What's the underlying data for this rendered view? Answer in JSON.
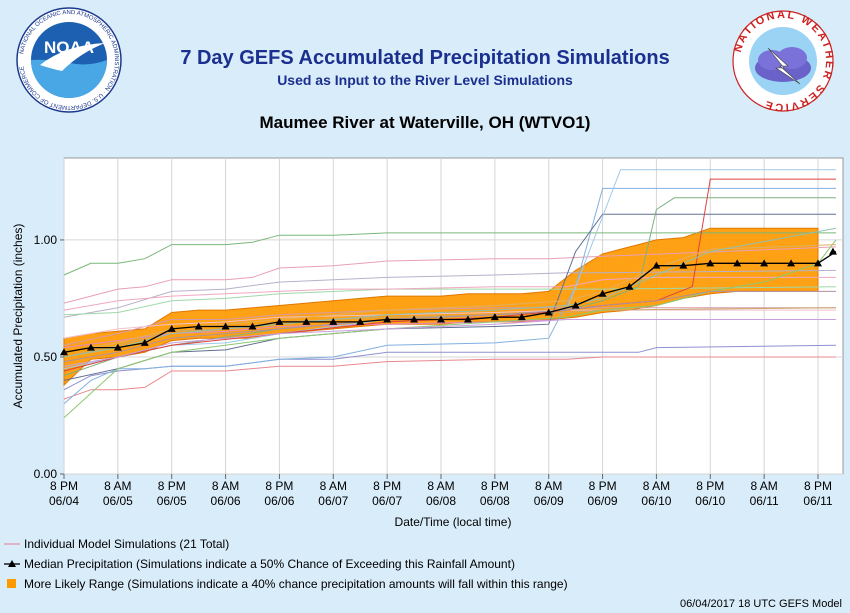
{
  "header": {
    "title": "7 Day GEFS Accumulated Precipitation Simulations",
    "subtitle": "Used as Input to the River Level Simulations",
    "location": "Maumee River at Waterville, OH (WTVO1)",
    "noaa_logo_text": "NOAA",
    "noaa_ring_text": "NATIONAL OCEANIC AND ATMOSPHERIC ADMINISTRATION · U.S. DEPARTMENT OF COMMERCE",
    "nws_ring_text": "NATIONAL WEATHER SERVICE"
  },
  "footer": {
    "model_run": "06/04/2017 18 UTC GEFS Model"
  },
  "chart_data": {
    "type": "line",
    "xlabel": "Date/Time (local time)",
    "ylabel": "Accumulated Precipitation (inches)",
    "ylim": [
      0,
      1.35
    ],
    "yticks": [
      "0.00",
      "0.50",
      "1.00"
    ],
    "ytick_values": [
      0,
      0.5,
      1.0
    ],
    "xlim": [
      0,
      84
    ],
    "xticks": [
      {
        "t": 0,
        "l1": "8 PM",
        "l2": "06/04"
      },
      {
        "t": 6,
        "l1": "8 AM",
        "l2": "06/05"
      },
      {
        "t": 12,
        "l1": "8 PM",
        "l2": "06/05"
      },
      {
        "t": 18,
        "l1": "8 AM",
        "l2": "06/06"
      },
      {
        "t": 24,
        "l1": "8 PM",
        "l2": "06/06"
      },
      {
        "t": 30,
        "l1": "8 AM",
        "l2": "06/07"
      },
      {
        "t": 36,
        "l1": "8 PM",
        "l2": "06/07"
      },
      {
        "t": 42,
        "l1": "8 AM",
        "l2": "06/08"
      },
      {
        "t": 48,
        "l1": "8 PM",
        "l2": "06/08"
      },
      {
        "t": 54,
        "l1": "8 AM",
        "l2": "06/09"
      },
      {
        "t": 60,
        "l1": "8 PM",
        "l2": "06/09"
      },
      {
        "t": 66,
        "l1": "8 AM",
        "l2": "06/10"
      },
      {
        "t": 72,
        "l1": "8 PM",
        "l2": "06/10"
      },
      {
        "t": 78,
        "l1": "8 AM",
        "l2": "06/11"
      },
      {
        "t": 84,
        "l1": "8 PM",
        "l2": "06/11"
      }
    ],
    "x_unit": "hours/2 since 06/04 8 PM (one unit = 2 hours)",
    "likely_range": {
      "t": [
        0,
        3,
        6,
        9,
        12,
        15,
        18,
        21,
        24,
        27,
        30,
        33,
        36,
        39,
        42,
        45,
        48,
        51,
        54,
        57,
        60,
        63,
        66,
        69,
        72,
        75,
        78,
        81,
        84
      ],
      "low": [
        0.38,
        0.49,
        0.5,
        0.52,
        0.57,
        0.58,
        0.58,
        0.58,
        0.6,
        0.61,
        0.62,
        0.63,
        0.64,
        0.64,
        0.64,
        0.65,
        0.65,
        0.65,
        0.66,
        0.67,
        0.69,
        0.7,
        0.72,
        0.75,
        0.77,
        0.78,
        0.78,
        0.78,
        0.78
      ],
      "high": [
        0.58,
        0.6,
        0.61,
        0.62,
        0.69,
        0.7,
        0.7,
        0.71,
        0.72,
        0.73,
        0.74,
        0.75,
        0.76,
        0.76,
        0.76,
        0.77,
        0.77,
        0.77,
        0.78,
        0.87,
        0.94,
        0.97,
        1.0,
        1.01,
        1.05,
        1.05,
        1.05,
        1.05,
        1.05
      ]
    },
    "median": {
      "name": "Median Precipitation",
      "t": [
        0,
        3,
        6,
        9,
        12,
        15,
        18,
        21,
        24,
        27,
        30,
        33,
        36,
        39,
        42,
        45,
        48,
        51,
        54,
        57,
        60,
        63,
        66,
        69,
        72,
        75,
        78,
        81,
        84
      ],
      "values": [
        0.52,
        0.54,
        0.54,
        0.56,
        0.62,
        0.63,
        0.63,
        0.63,
        0.65,
        0.65,
        0.65,
        0.65,
        0.66,
        0.66,
        0.66,
        0.66,
        0.67,
        0.67,
        0.69,
        0.72,
        0.77,
        0.8,
        0.89,
        0.89,
        0.9,
        0.9,
        0.9,
        0.9,
        0.9
      ]
    },
    "median_tail": {
      "t": [
        84,
        86
      ],
      "values": [
        0.9,
        0.95
      ]
    },
    "members": [
      {
        "color": "#79b779",
        "t": [
          0,
          3,
          6,
          9,
          12,
          18,
          21,
          24,
          30,
          36,
          48,
          56,
          60,
          86
        ],
        "values": [
          0.85,
          0.9,
          0.9,
          0.92,
          0.98,
          0.98,
          0.99,
          1.02,
          1.02,
          1.03,
          1.03,
          1.03,
          1.03,
          1.03
        ]
      },
      {
        "color": "#e8a0b4",
        "t": [
          0,
          6,
          9,
          12,
          18,
          21,
          24,
          30,
          36,
          48,
          54,
          60,
          86
        ],
        "values": [
          0.73,
          0.79,
          0.8,
          0.83,
          0.83,
          0.84,
          0.88,
          0.89,
          0.91,
          0.92,
          0.92,
          0.93,
          0.97
        ]
      },
      {
        "color": "#b8b0c8",
        "t": [
          0,
          6,
          12,
          18,
          24,
          36,
          48,
          56,
          60,
          86
        ],
        "values": [
          0.67,
          0.71,
          0.78,
          0.79,
          0.82,
          0.84,
          0.85,
          0.86,
          0.86,
          0.87
        ]
      },
      {
        "color": "#9fd9a8",
        "t": [
          0,
          6,
          12,
          18,
          24,
          36,
          48,
          56,
          60,
          86
        ],
        "values": [
          0.68,
          0.69,
          0.74,
          0.75,
          0.77,
          0.79,
          0.79,
          0.79,
          0.79,
          0.8
        ]
      },
      {
        "color": "#f0a8c0",
        "t": [
          0,
          6,
          12,
          18,
          24,
          30,
          36,
          48,
          56,
          60,
          66,
          86
        ],
        "values": [
          0.7,
          0.74,
          0.76,
          0.77,
          0.78,
          0.79,
          0.79,
          0.8,
          0.8,
          0.83,
          0.84,
          0.84
        ]
      },
      {
        "color": "#d89aa8",
        "t": [
          0,
          6,
          12,
          18,
          24,
          30,
          36,
          48,
          56,
          60,
          86
        ],
        "values": [
          0.55,
          0.6,
          0.66,
          0.66,
          0.68,
          0.69,
          0.7,
          0.71,
          0.71,
          0.71,
          0.71
        ]
      },
      {
        "color": "#f3c0cc",
        "t": [
          0,
          6,
          12,
          18,
          24,
          36,
          48,
          56,
          60,
          86
        ],
        "values": [
          0.58,
          0.62,
          0.64,
          0.65,
          0.67,
          0.68,
          0.69,
          0.7,
          0.7,
          0.7
        ]
      },
      {
        "color": "#e488c8",
        "t": [
          0,
          6,
          12,
          18,
          24,
          36,
          48,
          56,
          60,
          86
        ],
        "values": [
          0.54,
          0.57,
          0.6,
          0.61,
          0.63,
          0.64,
          0.65,
          0.66,
          0.66,
          0.66
        ]
      },
      {
        "color": "#c9a86a",
        "t": [
          0,
          6,
          12,
          18,
          24,
          36,
          48,
          56,
          60,
          86
        ],
        "values": [
          0.5,
          0.55,
          0.61,
          0.62,
          0.65,
          0.67,
          0.68,
          0.69,
          0.7,
          0.71
        ]
      },
      {
        "color": "#e8888f",
        "t": [
          0,
          3,
          6,
          9,
          12,
          18,
          24,
          30,
          36,
          48,
          56,
          60,
          86
        ],
        "values": [
          0.32,
          0.36,
          0.36,
          0.37,
          0.44,
          0.44,
          0.46,
          0.46,
          0.48,
          0.49,
          0.49,
          0.5,
          0.5
        ]
      },
      {
        "color": "#9090d0",
        "t": [
          0,
          3,
          6,
          9,
          12,
          18,
          24,
          30,
          36,
          48,
          56,
          60,
          64,
          66,
          86
        ],
        "values": [
          0.36,
          0.42,
          0.44,
          0.45,
          0.46,
          0.46,
          0.49,
          0.49,
          0.52,
          0.52,
          0.52,
          0.52,
          0.52,
          0.54,
          0.55
        ]
      },
      {
        "color": "#80b0e0",
        "t": [
          0,
          3,
          6,
          9,
          12,
          18,
          24,
          30,
          36,
          48,
          54,
          57,
          60,
          66,
          86
        ],
        "values": [
          0.3,
          0.4,
          0.45,
          0.45,
          0.46,
          0.46,
          0.49,
          0.5,
          0.55,
          0.56,
          0.58,
          0.8,
          1.22,
          1.22,
          1.22
        ]
      },
      {
        "color": "#607090",
        "t": [
          0,
          6,
          12,
          18,
          24,
          36,
          48,
          54,
          57,
          60,
          86
        ],
        "values": [
          0.4,
          0.45,
          0.52,
          0.53,
          0.58,
          0.62,
          0.63,
          0.64,
          0.95,
          1.11,
          1.11
        ]
      },
      {
        "color": "#a0c8e8",
        "t": [
          0,
          6,
          12,
          18,
          24,
          36,
          48,
          56,
          60,
          62,
          86
        ],
        "values": [
          0.45,
          0.5,
          0.55,
          0.56,
          0.6,
          0.66,
          0.68,
          0.7,
          1.1,
          1.3,
          1.3
        ]
      },
      {
        "color": "#7fb07f",
        "t": [
          0,
          6,
          12,
          24,
          36,
          48,
          56,
          60,
          64,
          66,
          68,
          86
        ],
        "values": [
          0.42,
          0.5,
          0.55,
          0.62,
          0.66,
          0.68,
          0.7,
          0.74,
          0.8,
          1.13,
          1.18,
          1.18
        ]
      },
      {
        "color": "#e04040",
        "t": [
          0,
          6,
          12,
          24,
          36,
          48,
          56,
          60,
          66,
          70,
          72,
          86
        ],
        "values": [
          0.44,
          0.5,
          0.55,
          0.6,
          0.65,
          0.67,
          0.7,
          0.72,
          0.74,
          0.8,
          1.26,
          1.26
        ]
      },
      {
        "color": "#8cc870",
        "t": [
          0,
          6,
          12,
          24,
          36,
          48,
          56,
          60,
          66,
          72,
          78,
          84,
          86
        ],
        "values": [
          0.24,
          0.45,
          0.52,
          0.58,
          0.62,
          0.65,
          0.67,
          0.7,
          0.72,
          0.78,
          0.82,
          0.9,
          1.0
        ]
      },
      {
        "color": "#b090a0",
        "t": [
          0,
          6,
          12,
          24,
          36,
          48,
          56,
          60,
          66,
          72,
          86
        ],
        "values": [
          0.48,
          0.52,
          0.58,
          0.62,
          0.66,
          0.68,
          0.7,
          0.72,
          0.74,
          0.78,
          0.78
        ]
      },
      {
        "color": "#c8a0e0",
        "t": [
          0,
          6,
          12,
          24,
          36,
          48,
          56,
          60,
          86
        ],
        "values": [
          0.46,
          0.5,
          0.56,
          0.6,
          0.62,
          0.64,
          0.66,
          0.66,
          0.66
        ]
      },
      {
        "color": "#e0b060",
        "t": [
          0,
          6,
          12,
          24,
          36,
          48,
          56,
          60,
          66,
          72,
          86
        ],
        "values": [
          0.52,
          0.56,
          0.62,
          0.66,
          0.7,
          0.72,
          0.74,
          0.78,
          0.88,
          0.96,
          0.98
        ]
      },
      {
        "color": "#90c0b0",
        "t": [
          0,
          6,
          12,
          24,
          36,
          48,
          56,
          60,
          66,
          72,
          86
        ],
        "values": [
          0.5,
          0.54,
          0.6,
          0.64,
          0.68,
          0.7,
          0.72,
          0.75,
          0.85,
          0.95,
          1.05
        ]
      }
    ],
    "legend": [
      {
        "key": "members",
        "label": "Individual Model Simulations (21 Total)",
        "color": "#e8a0b4"
      },
      {
        "key": "median",
        "label": "Median Precipitation (Simulations indicate a 50% Chance of Exceeding this Rainfall Amount)",
        "color": "#000000"
      },
      {
        "key": "range",
        "label": "More Likely Range (Simulations indicate a 40% chance precipitation amounts will fall within this range)",
        "color": "#ff9900"
      }
    ],
    "colors": {
      "range_fill": "#ff9900",
      "range_edge": "#e07800",
      "median_line": "#000000",
      "grid": "#d6d6d6",
      "plot_bg": "#ffffff",
      "title": "#1b2f8f"
    }
  }
}
